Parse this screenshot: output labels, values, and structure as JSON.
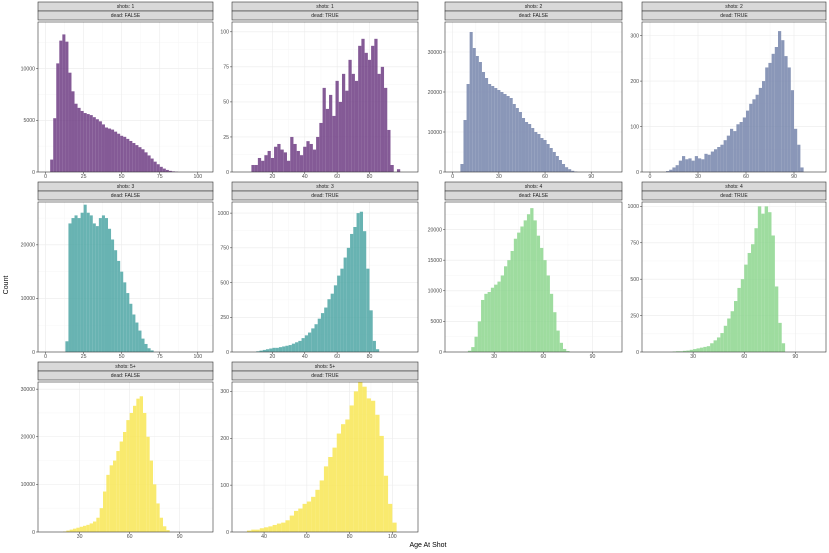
{
  "chart_data": {
    "type": "bar",
    "subtype": "faceted-histogram",
    "xlabel": "Age At Shot",
    "ylabel": "Count",
    "grid": true,
    "panels": [
      {
        "strip_top": "shots: 1",
        "strip_bottom": "dead: FALSE",
        "color": "#6f3d84",
        "xlim": [
          -5,
          110
        ],
        "ylim": [
          0,
          14500
        ],
        "xticks": [
          0,
          25,
          50,
          75,
          100
        ],
        "yticks": [
          0,
          5000,
          10000
        ],
        "bins": {
          "start": 3,
          "width": 2,
          "counts": [
            1200,
            5200,
            10500,
            12700,
            13300,
            12600,
            9600,
            7800,
            6600,
            6200,
            5900,
            5700,
            5600,
            5500,
            5300,
            5100,
            4900,
            4600,
            4300,
            4200,
            4100,
            3900,
            3700,
            3500,
            3400,
            3200,
            3000,
            2800,
            2600,
            2400,
            2200,
            1900,
            1600,
            1300,
            1000,
            750,
            500,
            330,
            200,
            110,
            60,
            25
          ]
        }
      },
      {
        "strip_top": "shots: 1",
        "strip_bottom": "dead: TRUE",
        "color": "#6f3d84",
        "xlim": [
          -5,
          110
        ],
        "ylim": [
          0,
          107
        ],
        "xticks": [
          20,
          40,
          60,
          80
        ],
        "yticks": [
          0,
          25,
          50,
          75,
          100
        ],
        "bins": {
          "start": 5,
          "width": 2,
          "counts": [
            0,
            5,
            5,
            10,
            8,
            12,
            15,
            10,
            18,
            20,
            16,
            14,
            8,
            25,
            20,
            15,
            12,
            18,
            22,
            20,
            16,
            25,
            35,
            60,
            45,
            55,
            40,
            65,
            50,
            70,
            58,
            80,
            70,
            65,
            90,
            95,
            85,
            80,
            90,
            95,
            70,
            75,
            60,
            30,
            5,
            0,
            2
          ]
        }
      },
      {
        "strip_top": "shots: 2",
        "strip_bottom": "dead: FALSE",
        "color": "#7585ac",
        "xlim": [
          -5,
          110
        ],
        "ylim": [
          0,
          37500
        ],
        "xticks": [
          0,
          30,
          60,
          90
        ],
        "yticks": [
          0,
          10000,
          20000,
          30000
        ],
        "bins": {
          "start": 5,
          "width": 2,
          "counts": [
            2000,
            13000,
            22000,
            35000,
            31000,
            29000,
            27500,
            25000,
            23500,
            22000,
            21500,
            21000,
            20500,
            20000,
            19500,
            19000,
            18500,
            17000,
            16000,
            15000,
            13500,
            12500,
            12000,
            11000,
            10000,
            9500,
            8500,
            8000,
            7000,
            6000,
            5000,
            4000,
            3000,
            2000,
            1200,
            700,
            300,
            100
          ]
        }
      },
      {
        "strip_top": "shots: 2",
        "strip_bottom": "dead: TRUE",
        "color": "#7585ac",
        "xlim": [
          -5,
          110
        ],
        "ylim": [
          0,
          330
        ],
        "xticks": [
          0,
          30,
          60,
          90
        ],
        "yticks": [
          0,
          100,
          200,
          300
        ],
        "bins": {
          "start": 10,
          "width": 2,
          "counts": [
            2,
            5,
            10,
            15,
            25,
            35,
            28,
            30,
            25,
            35,
            30,
            28,
            40,
            38,
            45,
            50,
            55,
            60,
            70,
            80,
            95,
            90,
            105,
            110,
            120,
            135,
            150,
            160,
            170,
            185,
            200,
            230,
            240,
            260,
            275,
            310,
            290,
            255,
            230,
            180,
            95,
            60,
            10
          ]
        }
      },
      {
        "strip_top": "shots: 3",
        "strip_bottom": "dead: FALSE",
        "color": "#4ea6a5",
        "xlim": [
          -5,
          110
        ],
        "ylim": [
          0,
          28000
        ],
        "xticks": [
          0,
          25,
          50,
          75,
          100
        ],
        "yticks": [
          0,
          10000,
          20000
        ],
        "bins": {
          "start": 13,
          "width": 2,
          "counts": [
            2000,
            24000,
            25000,
            25500,
            25000,
            26000,
            27500,
            26000,
            25500,
            24000,
            23500,
            25000,
            25500,
            25000,
            23000,
            21000,
            19000,
            17000,
            15000,
            13000,
            11000,
            9000,
            7000,
            5500,
            4000,
            2500,
            1500,
            700,
            300
          ]
        }
      },
      {
        "strip_top": "shots: 3",
        "strip_bottom": "dead: TRUE",
        "color": "#4ea6a5",
        "xlim": [
          -5,
          110
        ],
        "ylim": [
          0,
          1080
        ],
        "xticks": [
          20,
          40,
          60,
          80
        ],
        "yticks": [
          0,
          250,
          500,
          750,
          1000
        ],
        "bins": {
          "start": 10,
          "width": 2,
          "counts": [
            5,
            10,
            15,
            20,
            25,
            30,
            30,
            35,
            40,
            45,
            50,
            60,
            70,
            80,
            100,
            120,
            140,
            170,
            200,
            240,
            280,
            320,
            380,
            420,
            480,
            550,
            600,
            680,
            750,
            850,
            900,
            1000,
            1010,
            870,
            600,
            300,
            80,
            20
          ]
        }
      },
      {
        "strip_top": "shots: 4",
        "strip_bottom": "dead: FALSE",
        "color": "#8dd68e",
        "xlim": [
          0,
          108
        ],
        "ylim": [
          0,
          24500
        ],
        "xticks": [
          30,
          60,
          90
        ],
        "yticks": [
          0,
          5000,
          10000,
          15000,
          20000
        ],
        "bins": {
          "start": 14,
          "width": 2,
          "counts": [
            200,
            800,
            2500,
            5000,
            8500,
            9500,
            9800,
            10500,
            11000,
            11500,
            12500,
            14000,
            15000,
            16500,
            18500,
            19500,
            20500,
            21500,
            22500,
            23500,
            21500,
            19000,
            17000,
            15000,
            12500,
            9500,
            6500,
            3500,
            1500,
            500,
            150
          ]
        }
      },
      {
        "strip_top": "shots: 4",
        "strip_bottom": "dead: TRUE",
        "color": "#8dd68e",
        "xlim": [
          0,
          108
        ],
        "ylim": [
          0,
          1030
        ],
        "xticks": [
          30,
          60,
          90
        ],
        "yticks": [
          0,
          250,
          500,
          750,
          1000
        ],
        "bins": {
          "start": 18,
          "width": 2,
          "counts": [
            3,
            5,
            5,
            8,
            10,
            15,
            20,
            25,
            30,
            35,
            40,
            60,
            80,
            100,
            130,
            180,
            230,
            280,
            350,
            440,
            500,
            600,
            680,
            740,
            850,
            1000,
            950,
            1000,
            960,
            800,
            450,
            200,
            60
          ]
        }
      },
      {
        "strip_top": "shots: 5+",
        "strip_bottom": "dead: FALSE",
        "color": "#f8e655",
        "xlim": [
          5,
          110
        ],
        "ylim": [
          0,
          31500
        ],
        "xticks": [
          30,
          60,
          90
        ],
        "yticks": [
          0,
          10000,
          20000,
          30000
        ],
        "bins": {
          "start": 20,
          "width": 2,
          "counts": [
            100,
            300,
            500,
            700,
            900,
            1100,
            1300,
            1500,
            1800,
            2200,
            3000,
            5000,
            8500,
            12000,
            14000,
            15000,
            17000,
            19000,
            21000,
            23500,
            25000,
            26500,
            28000,
            28500,
            25000,
            20000,
            15000,
            10000,
            6000,
            3000,
            1200,
            400
          ]
        }
      },
      {
        "strip_top": "shots: 5+",
        "strip_bottom": "dead: TRUE",
        "color": "#f8e655",
        "xlim": [
          25,
          112
        ],
        "ylim": [
          0,
          320
        ],
        "xticks": [
          40,
          60,
          80,
          100
        ],
        "yticks": [
          0,
          100,
          200,
          300
        ],
        "bins": {
          "start": 32,
          "width": 2,
          "counts": [
            3,
            5,
            5,
            8,
            10,
            12,
            15,
            18,
            20,
            25,
            35,
            45,
            50,
            60,
            65,
            75,
            90,
            110,
            140,
            160,
            180,
            210,
            230,
            240,
            270,
            300,
            320,
            310,
            285,
            280,
            250,
            205,
            120,
            60,
            20
          ]
        }
      }
    ]
  }
}
